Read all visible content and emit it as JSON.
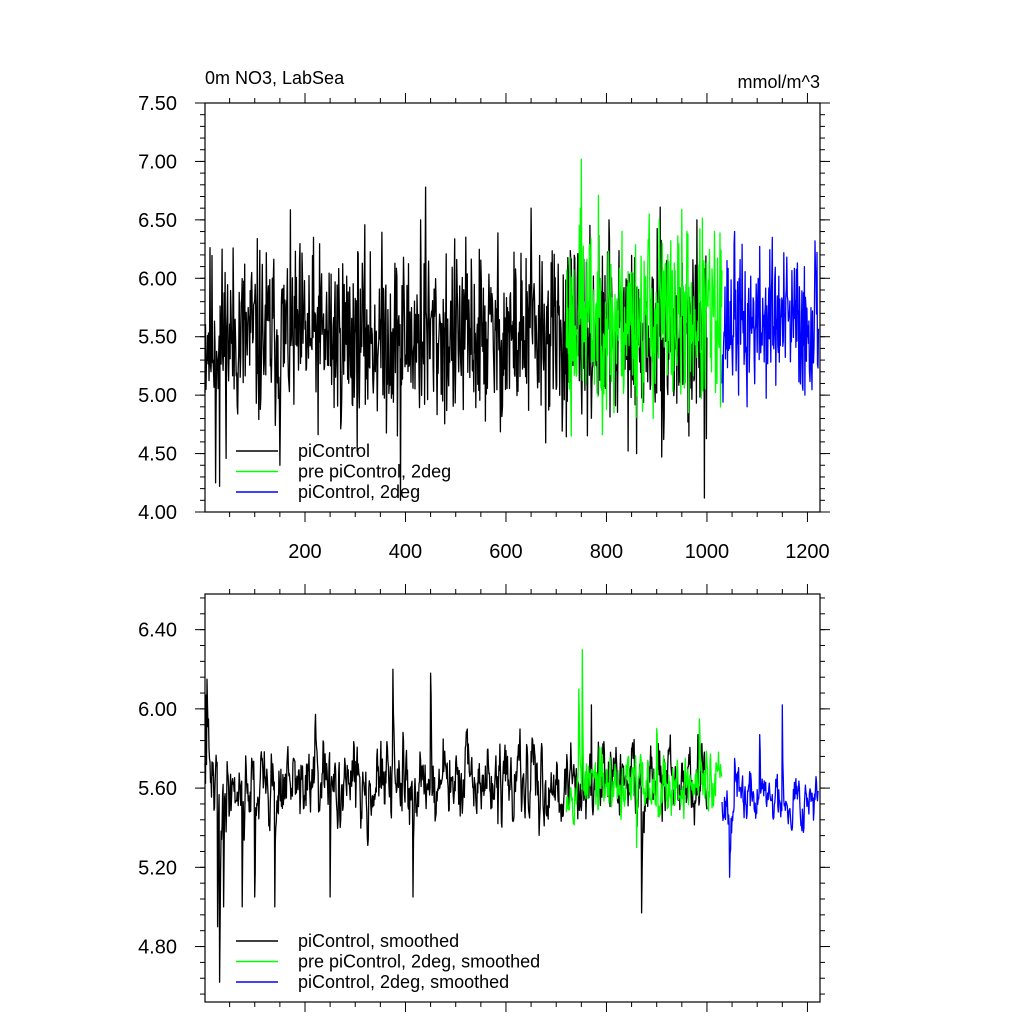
{
  "chart_data": [
    {
      "type": "line",
      "title": "0m NO3, LabSea",
      "units_label": "mmol/m^3",
      "xlabel": "",
      "ylabel": "",
      "xlim": [
        1,
        1225
      ],
      "ylim": [
        4.0,
        7.5
      ],
      "x_ticks": [
        200,
        400,
        600,
        800,
        1000,
        1200
      ],
      "x_tick_labels": [
        "200",
        "400",
        "600",
        "800",
        "1000",
        "1200"
      ],
      "y_ticks": [
        4.0,
        4.5,
        5.0,
        5.5,
        6.0,
        6.5,
        7.0,
        7.5
      ],
      "y_tick_labels": [
        "4.00",
        "4.50",
        "5.00",
        "5.50",
        "6.00",
        "6.50",
        "7.00",
        "7.50"
      ],
      "grid": false,
      "legend_position": "bottom-left",
      "series": [
        {
          "name": "piControl",
          "color": "#000000",
          "x_start": 1,
          "x_end": 1000,
          "mean": 5.5,
          "amplitude": 0.38,
          "seed": 11,
          "extremes": [
            [
              22,
              4.25
            ],
            [
              30,
              4.22
            ],
            [
              150,
              4.4
            ],
            [
              390,
              4.1
            ],
            [
              440,
              6.78
            ],
            [
              430,
              6.5
            ],
            [
              650,
              6.6
            ],
            [
              995,
              4.12
            ],
            [
              980,
              6.5
            ],
            [
              805,
              6.5
            ],
            [
              860,
              4.5
            ]
          ]
        },
        {
          "name": "pre piControl, 2deg",
          "color": "#00ff00",
          "x_start": 720,
          "x_end": 1030,
          "mean": 5.65,
          "amplitude": 0.38,
          "seed": 23,
          "extremes": [
            [
              750,
              7.02
            ],
            [
              730,
              4.65
            ],
            [
              748,
              6.6
            ],
            [
              885,
              6.55
            ],
            [
              905,
              6.5
            ],
            [
              815,
              4.85
            ],
            [
              960,
              6.4
            ],
            [
              1020,
              5.1
            ]
          ]
        },
        {
          "name": "piControl, 2deg",
          "color": "#0000ff",
          "x_start": 1030,
          "x_end": 1222,
          "mean": 5.62,
          "amplitude": 0.3,
          "seed": 37,
          "extremes": [
            [
              1055,
              6.4
            ],
            [
              1130,
              6.35
            ],
            [
              1215,
              6.32
            ],
            [
              1080,
              4.9
            ],
            [
              1195,
              5.0
            ],
            [
              1030,
              5.1
            ]
          ]
        }
      ]
    },
    {
      "type": "line",
      "title": "",
      "xlabel": "",
      "ylabel": "",
      "xlim": [
        1,
        1225
      ],
      "ylim": [
        4.52,
        6.58
      ],
      "x_ticks": [
        200,
        400,
        600,
        800,
        1000,
        1200
      ],
      "x_tick_labels": [],
      "y_ticks": [
        4.8,
        5.2,
        5.6,
        6.0,
        6.4
      ],
      "y_tick_labels": [
        "4.80",
        "5.20",
        "5.60",
        "6.00",
        "6.40"
      ],
      "grid": false,
      "legend_position": "bottom-left",
      "series": [
        {
          "name": "piControl, smoothed",
          "color": "#000000",
          "x_start": 1,
          "x_end": 1000,
          "mean": 5.62,
          "amplitude": 0.18,
          "seed": 41,
          "extremes": [
            [
              3,
              6.07
            ],
            [
              5,
              6.15
            ],
            [
              20,
              5.5
            ],
            [
              26,
              4.9
            ],
            [
              30,
              4.62
            ],
            [
              38,
              5.0
            ],
            [
              75,
              5.0
            ],
            [
              100,
              5.05
            ],
            [
              140,
              5.0
            ],
            [
              220,
              5.9
            ],
            [
              375,
              6.2
            ],
            [
              450,
              6.18
            ],
            [
              415,
              5.05
            ],
            [
              770,
              6.02
            ],
            [
              870,
              4.97
            ],
            [
              250,
              5.05
            ]
          ]
        },
        {
          "name": "pre piControl, 2deg, smoothed",
          "color": "#00ff00",
          "x_start": 720,
          "x_end": 1030,
          "mean": 5.62,
          "amplitude": 0.15,
          "seed": 53,
          "extremes": [
            [
              752,
              6.3
            ],
            [
              745,
              6.1
            ],
            [
              860,
              5.3
            ],
            [
              900,
              5.9
            ],
            [
              985,
              5.95
            ],
            [
              1010,
              5.5
            ]
          ]
        },
        {
          "name": "piControl, 2deg, smoothed",
          "color": "#0000ff",
          "x_start": 1030,
          "x_end": 1222,
          "mean": 5.55,
          "amplitude": 0.12,
          "seed": 67,
          "extremes": [
            [
              1045,
              5.15
            ],
            [
              1055,
              5.75
            ],
            [
              1105,
              5.87
            ],
            [
              1150,
              6.02
            ],
            [
              1170,
              5.4
            ],
            [
              1222,
              5.58
            ]
          ]
        }
      ]
    }
  ]
}
